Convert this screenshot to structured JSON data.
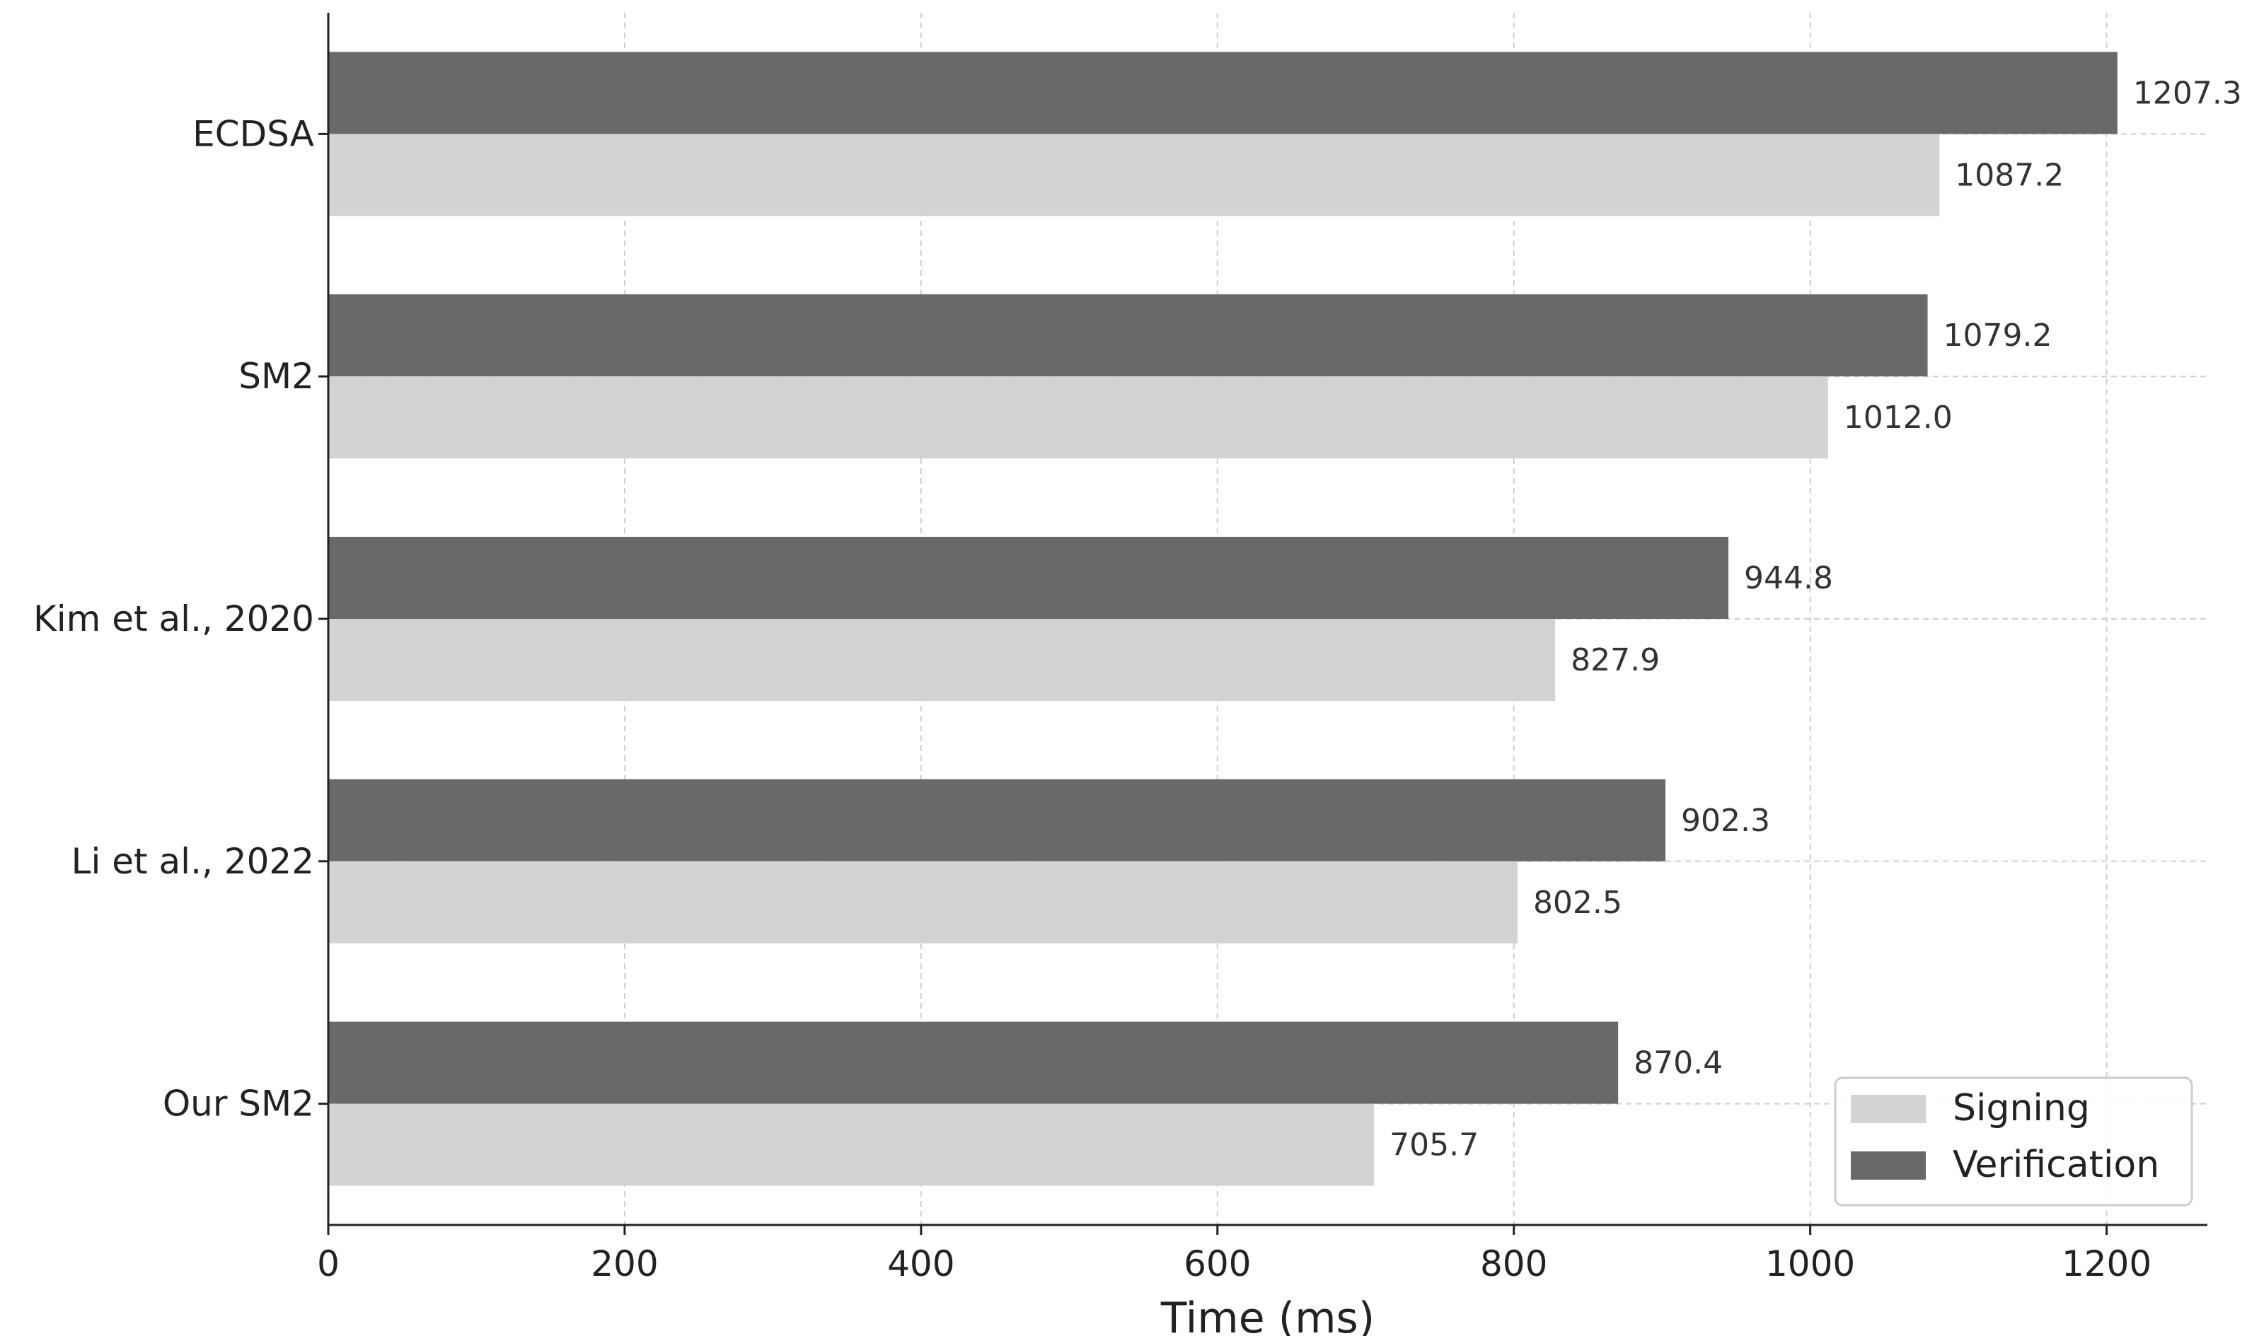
{
  "chart_data": {
    "type": "bar",
    "orientation": "horizontal",
    "categories": [
      "ECDSA",
      "SM2",
      "Kim et al., 2020",
      "Li et al., 2022",
      "Our SM2"
    ],
    "series": [
      {
        "name": "Signing",
        "values": [
          1087.2,
          1012.0,
          827.9,
          802.5,
          705.7
        ],
        "color": "#d3d3d3",
        "labels": [
          "1087.2",
          "1012.0",
          "827.9",
          "802.5",
          "705.7"
        ]
      },
      {
        "name": "Verification",
        "values": [
          1207.3,
          1079.2,
          944.8,
          902.3,
          870.4
        ],
        "color": "#696969",
        "labels": [
          "1207.3",
          "1079.2",
          "944.8",
          "902.3",
          "870.4"
        ]
      }
    ],
    "xlabel": "Time (ms)",
    "ylabel": "",
    "xlim": [
      0,
      1268
    ],
    "xticks": [
      0,
      200,
      400,
      600,
      800,
      1000,
      1200
    ],
    "xtick_labels": [
      "0",
      "200",
      "400",
      "600",
      "800",
      "1000",
      "1200"
    ],
    "grid": true,
    "legend_position": "bottom-right"
  }
}
